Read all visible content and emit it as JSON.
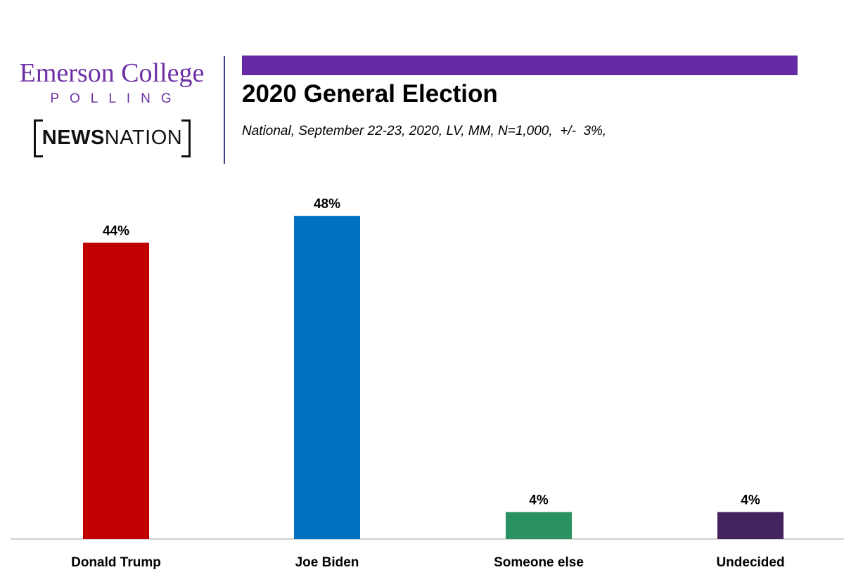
{
  "branding": {
    "emerson_text": "Emerson College",
    "polling_text": "POLLING",
    "news_text": "NEWS",
    "nation_text": "NATION",
    "brand_color": "#6e2fa6",
    "bar_color": "#6429a3"
  },
  "chart_data": {
    "type": "bar",
    "title": "2020 General Election",
    "subtitle": "National, September 22-23, 2020, LV, MM, N=1,000,  +/-  3%,",
    "categories": [
      "Donald Trump",
      "Joe Biden",
      "Someone else",
      "Undecided"
    ],
    "values": [
      44,
      48,
      4,
      4
    ],
    "data_labels": [
      "44%",
      "48%",
      "4%",
      "4%"
    ],
    "colors": [
      "#c00000",
      "#0070c0",
      "#2a9160",
      "#43225e"
    ],
    "ylim": [
      0,
      50
    ],
    "grid": false,
    "legend": "none"
  }
}
